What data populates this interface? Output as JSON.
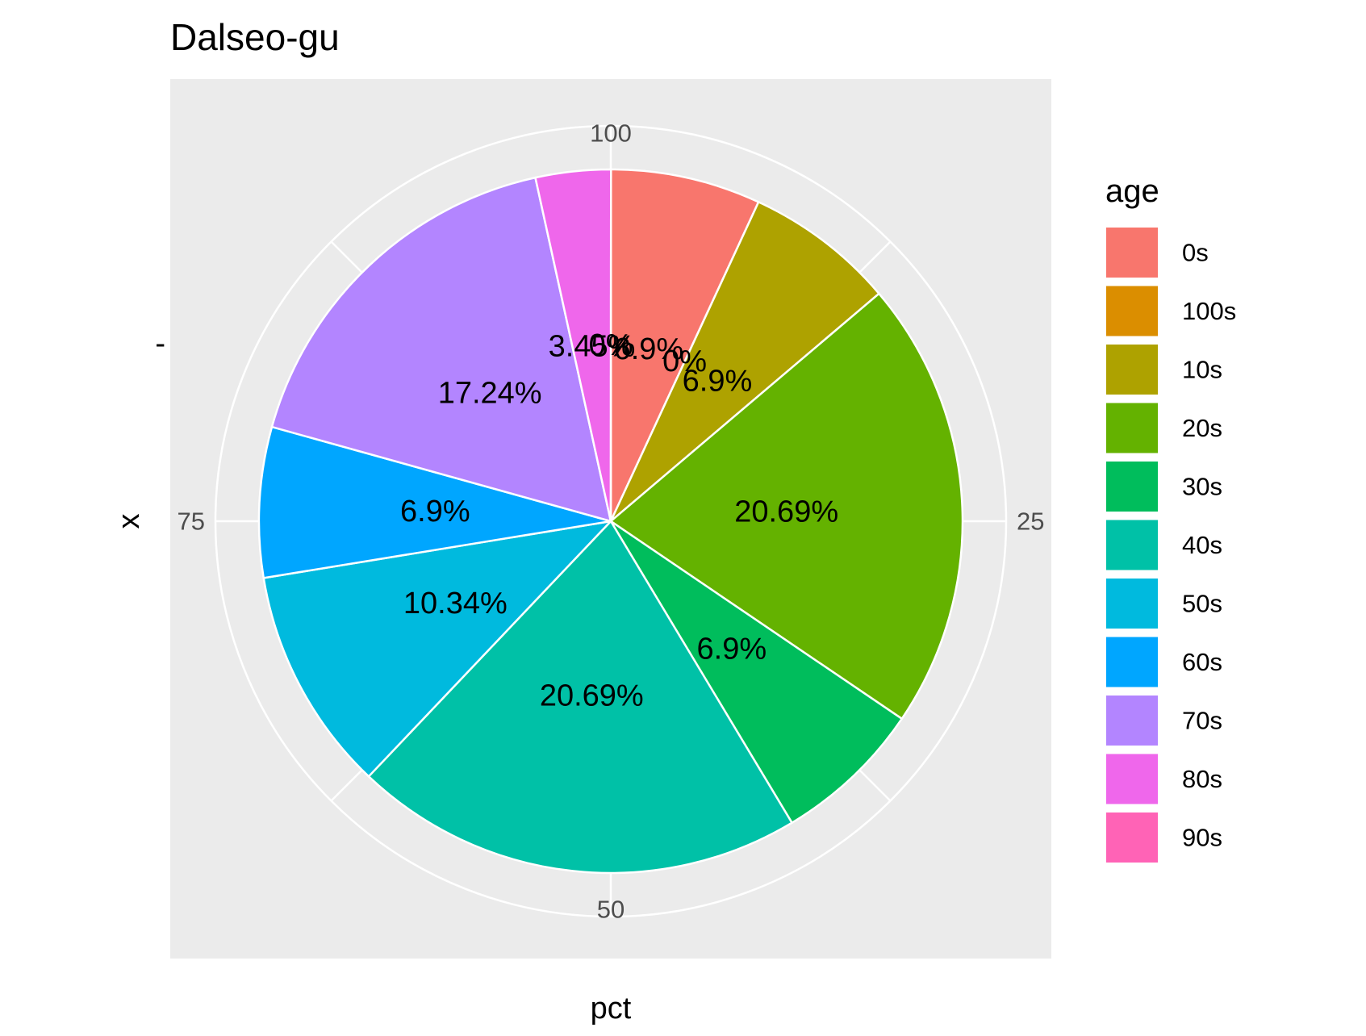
{
  "chart_data": {
    "type": "pie",
    "title": "Dalseo-gu",
    "xlabel": "pct",
    "ylabel": "x",
    "y_tick_label": "-",
    "theta_axis": {
      "range": [
        0,
        100
      ],
      "ticks": [
        "100",
        "25",
        "50",
        "75"
      ]
    },
    "slices": [
      {
        "label": "0s",
        "value": 6.9,
        "display": "6.9%",
        "color": "#F8766D"
      },
      {
        "label": "100s",
        "value": 0,
        "display": "0%",
        "color": "#DB8E00"
      },
      {
        "label": "10s",
        "value": 6.9,
        "display": "6.9%",
        "color": "#AEA200"
      },
      {
        "label": "20s",
        "value": 20.69,
        "display": "20.69%",
        "color": "#64B200"
      },
      {
        "label": "30s",
        "value": 6.9,
        "display": "6.9%",
        "color": "#00BD5C"
      },
      {
        "label": "40s",
        "value": 20.69,
        "display": "20.69%",
        "color": "#00C1A7"
      },
      {
        "label": "50s",
        "value": 10.34,
        "display": "10.34%",
        "color": "#00BADE"
      },
      {
        "label": "60s",
        "value": 6.9,
        "display": "6.9%",
        "color": "#00A6FF"
      },
      {
        "label": "70s",
        "value": 17.24,
        "display": "17.24%",
        "color": "#B385FF"
      },
      {
        "label": "80s",
        "value": 3.45,
        "display": "3.45%",
        "color": "#EF67EB"
      },
      {
        "label": "90s",
        "value": 0,
        "display": "0%",
        "color": "#FF63B6"
      }
    ],
    "legend": {
      "title": "age",
      "position": "right"
    },
    "panel_background": "#EBEBEB",
    "grid": true
  }
}
